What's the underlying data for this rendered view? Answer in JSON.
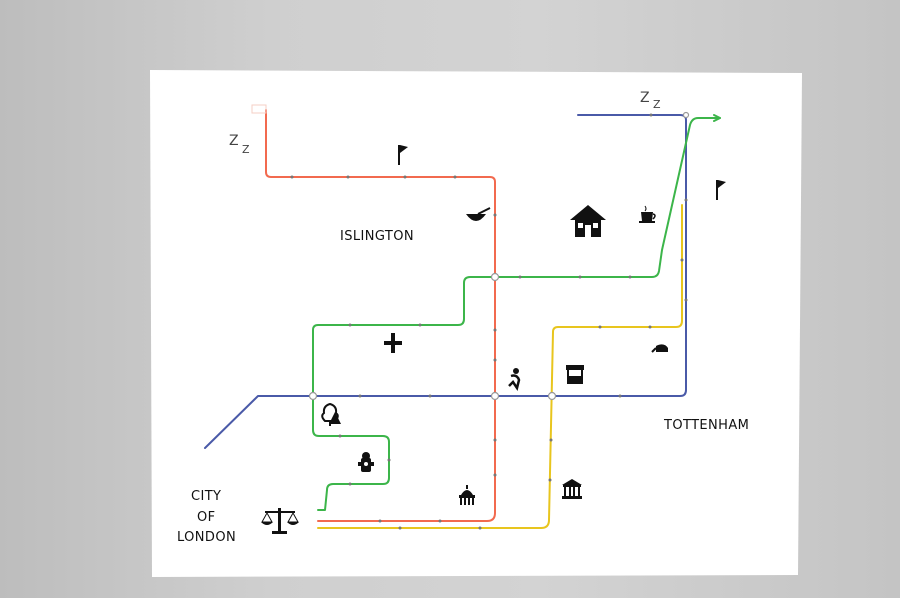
{
  "map": {
    "districts": {
      "islington": "ISLINGTON",
      "tottenham": "TOTTENHAM",
      "city_line1": "CITY",
      "city_line2": "OF",
      "city_line3": "LONDON"
    },
    "sleep_symbol": "Z",
    "lines": [
      {
        "id": "red",
        "color": "#f26a4f"
      },
      {
        "id": "green",
        "color": "#3cb54a"
      },
      {
        "id": "yellow",
        "color": "#e8c51e"
      },
      {
        "id": "blue",
        "color": "#4a5aa8"
      }
    ],
    "icons": [
      "house-icon",
      "coffee-cup-icon",
      "bowl-icon",
      "flag-icon",
      "plus-icon",
      "tree-icon",
      "fire-hydrant-icon",
      "scales-icon",
      "capitol-icon",
      "museum-icon",
      "market-stall-icon",
      "fountain-icon",
      "kettle-icon"
    ]
  }
}
